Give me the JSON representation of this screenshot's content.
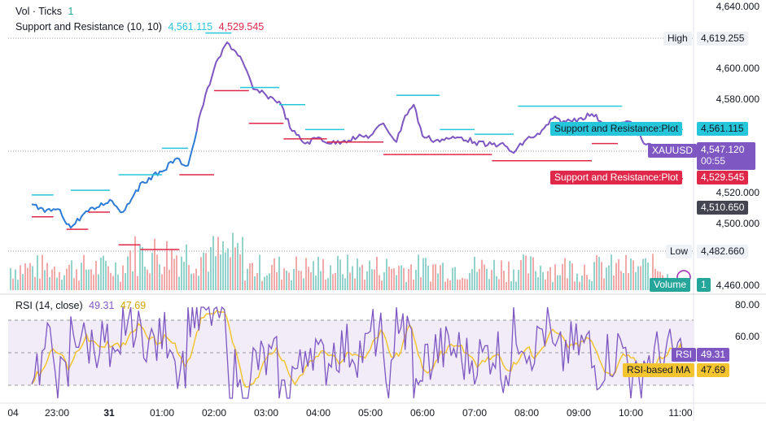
{
  "legends": {
    "vol_label": "Vol · Ticks",
    "vol_value": "1",
    "sr_label": "Support and Resistance (10, 10)",
    "sr_value1": "4,561.115",
    "sr_value2": "4,529.545",
    "rsi_label": "RSI (14, close)",
    "rsi_value": "49.31",
    "rsi_ma_value": "47.69"
  },
  "price_axis": [
    "4,640.000",
    "4,600.000",
    "4,580.000",
    "4,520.000",
    "4,500.000",
    "4,460.000"
  ],
  "rsi_axis": [
    "80.00",
    "60.00"
  ],
  "time_axis": [
    "04",
    "23:00",
    "31",
    "01:00",
    "02:00",
    "03:00",
    "04:00",
    "05:00",
    "06:00",
    "07:00",
    "08:00",
    "09:00",
    "10:00",
    "11:00"
  ],
  "labels": {
    "high_tag": "High",
    "high_value": "4,619.255",
    "low_tag": "Low",
    "low_value": "4,482.660",
    "res_tag": "Support and Resistance:Plot",
    "res_value": "4,561.115",
    "sup_tag": "Support and Resistance:Plot",
    "sup_value": "4,529.545",
    "symbol": "XAUUSD",
    "last_price": "4,547.120",
    "countdown": "00:55",
    "crosshair_price": "4,510.650",
    "volume_tag": "Volume",
    "volume_value": "1",
    "rsi_tag": "RSI",
    "rsi_value": "49.31",
    "rsi_ma_tag": "RSI-based MA",
    "rsi_ma_value": "47.69"
  },
  "colors": {
    "resistance": "#26c6da",
    "support": "#e0294a",
    "price_purple": "#7e57c2",
    "price_blue": "#2e7cd6",
    "vol_up": "#80cbc4",
    "vol_down": "#ef9a9a",
    "rsi_line": "#7e57c2",
    "rsi_ma": "#f4c430",
    "rsi_band": "#ede7f6",
    "label_dark": "#434651"
  },
  "chart_data": {
    "type": "line",
    "title": "XAUUSD",
    "ylim": [
      4460,
      4640
    ],
    "x": [
      "22:30",
      "22:45",
      "23:00",
      "23:15",
      "23:30",
      "23:45",
      "00:00",
      "00:15",
      "00:30",
      "00:45",
      "01:00",
      "01:15",
      "01:30",
      "01:40",
      "01:45",
      "02:00",
      "02:15",
      "02:30",
      "02:45",
      "03:00",
      "03:15",
      "03:30",
      "03:45",
      "04:00",
      "04:15",
      "04:30",
      "04:45",
      "05:00",
      "05:15",
      "05:30",
      "05:40",
      "05:50",
      "06:00",
      "06:15",
      "06:30",
      "06:45",
      "07:00",
      "07:15",
      "07:30",
      "07:45",
      "08:00",
      "08:15",
      "08:30",
      "08:45",
      "09:00",
      "09:15",
      "09:30",
      "09:45",
      "10:00",
      "10:15",
      "10:30",
      "10:45",
      "11:00"
    ],
    "series": [
      {
        "name": "XAUUSD",
        "values": [
          4513,
          4508,
          4510,
          4498,
          4507,
          4511,
          4516,
          4508,
          4522,
          4530,
          4534,
          4542,
          4538,
          4560,
          4573,
          4600,
          4617,
          4608,
          4587,
          4583,
          4579,
          4560,
          4552,
          4556,
          4552,
          4554,
          4556,
          4557,
          4565,
          4553,
          4570,
          4577,
          4557,
          4554,
          4555,
          4556,
          4553,
          4551,
          4552,
          4546,
          4555,
          4558,
          4568,
          4566,
          4568,
          4571,
          4565,
          4564,
          4566,
          4552,
          4549,
          4548,
          4547.12
        ]
      }
    ],
    "resistance_levels": [
      {
        "from": "22:30",
        "to": "22:55",
        "value": 4519
      },
      {
        "from": "23:15",
        "to": "00:00",
        "value": 4522
      },
      {
        "from": "00:10",
        "to": "01:00",
        "value": 4532
      },
      {
        "from": "01:00",
        "to": "01:30",
        "value": 4549
      },
      {
        "from": "01:50",
        "to": "02:20",
        "value": 4623
      },
      {
        "from": "02:30",
        "to": "03:15",
        "value": 4588
      },
      {
        "from": "03:15",
        "to": "03:45",
        "value": 4577
      },
      {
        "from": "03:45",
        "to": "04:30",
        "value": 4561
      },
      {
        "from": "05:30",
        "to": "06:20",
        "value": 4583
      },
      {
        "from": "06:20",
        "to": "07:00",
        "value": 4561
      },
      {
        "from": "07:00",
        "to": "07:45",
        "value": 4558
      },
      {
        "from": "07:50",
        "to": "09:50",
        "value": 4576
      },
      {
        "from": "10:00",
        "to": "11:00",
        "value": 4561.115
      }
    ],
    "support_levels": [
      {
        "from": "22:30",
        "to": "22:55",
        "value": 4505
      },
      {
        "from": "23:10",
        "to": "23:35",
        "value": 4497
      },
      {
        "from": "23:35",
        "to": "00:00",
        "value": 4508
      },
      {
        "from": "00:10",
        "to": "00:35",
        "value": 4487
      },
      {
        "from": "00:35",
        "to": "01:20",
        "value": 4484
      },
      {
        "from": "01:20",
        "to": "02:00",
        "value": 4532
      },
      {
        "from": "02:00",
        "to": "02:40",
        "value": 4586
      },
      {
        "from": "02:40",
        "to": "03:20",
        "value": 4565
      },
      {
        "from": "03:20",
        "to": "04:10",
        "value": 4555
      },
      {
        "from": "04:10",
        "to": "05:15",
        "value": 4553
      },
      {
        "from": "05:15",
        "to": "06:20",
        "value": 4545
      },
      {
        "from": "06:20",
        "to": "07:20",
        "value": 4545
      },
      {
        "from": "07:20",
        "to": "09:15",
        "value": 4541
      },
      {
        "from": "09:15",
        "to": "09:45",
        "value": 4552
      },
      {
        "from": "10:00",
        "to": "11:00",
        "value": 4529.545
      }
    ],
    "rsi": {
      "range": [
        20,
        80
      ],
      "band": [
        30,
        70
      ],
      "last": 49.31,
      "ma_last": 47.69
    }
  }
}
